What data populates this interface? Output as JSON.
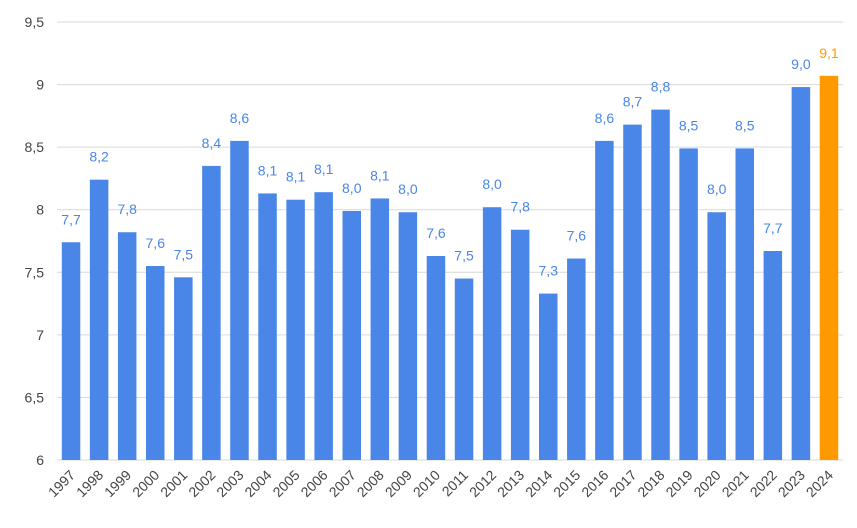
{
  "chart_data": {
    "type": "bar",
    "title": "",
    "xlabel": "",
    "ylabel": "",
    "ylim": [
      6,
      9.5
    ],
    "grid": true,
    "legend": "none",
    "yticks": [
      "6",
      "6,5",
      "7",
      "7,5",
      "8",
      "8,5",
      "9",
      "9,5"
    ],
    "ytick_values": [
      6,
      6.5,
      7,
      7.5,
      8,
      8.5,
      9,
      9.5
    ],
    "categories": [
      "1997",
      "1998",
      "1999",
      "2000",
      "2001",
      "2002",
      "2003",
      "2004",
      "2005",
      "2006",
      "2007",
      "2008",
      "2009",
      "2010",
      "2011",
      "2012",
      "2013",
      "2014",
      "2015",
      "2016",
      "2017",
      "2018",
      "2019",
      "2020",
      "2021",
      "2022",
      "2023",
      "2024"
    ],
    "values": [
      7.74,
      8.24,
      7.82,
      7.55,
      7.46,
      8.35,
      8.55,
      8.13,
      8.08,
      8.14,
      7.99,
      8.09,
      7.98,
      7.63,
      7.45,
      8.02,
      7.84,
      7.33,
      7.61,
      8.55,
      8.68,
      8.8,
      8.49,
      7.98,
      8.49,
      7.67,
      8.98,
      9.07
    ],
    "data_labels": [
      "7,7",
      "8,2",
      "7,8",
      "7,6",
      "7,5",
      "8,4",
      "8,6",
      "8,1",
      "8,1",
      "8,1",
      "8,0",
      "8,1",
      "8,0",
      "7,6",
      "7,5",
      "8,0",
      "7,8",
      "7,3",
      "7,6",
      "8,6",
      "8,7",
      "8,8",
      "8,5",
      "8,0",
      "8,5",
      "7,7",
      "9,0",
      "9,1"
    ],
    "colors": {
      "bar": "#4a86e8",
      "highlight": "#ff9900",
      "highlight_index": 27,
      "label": "#4a86e8",
      "highlight_label": "#ff9900"
    }
  }
}
